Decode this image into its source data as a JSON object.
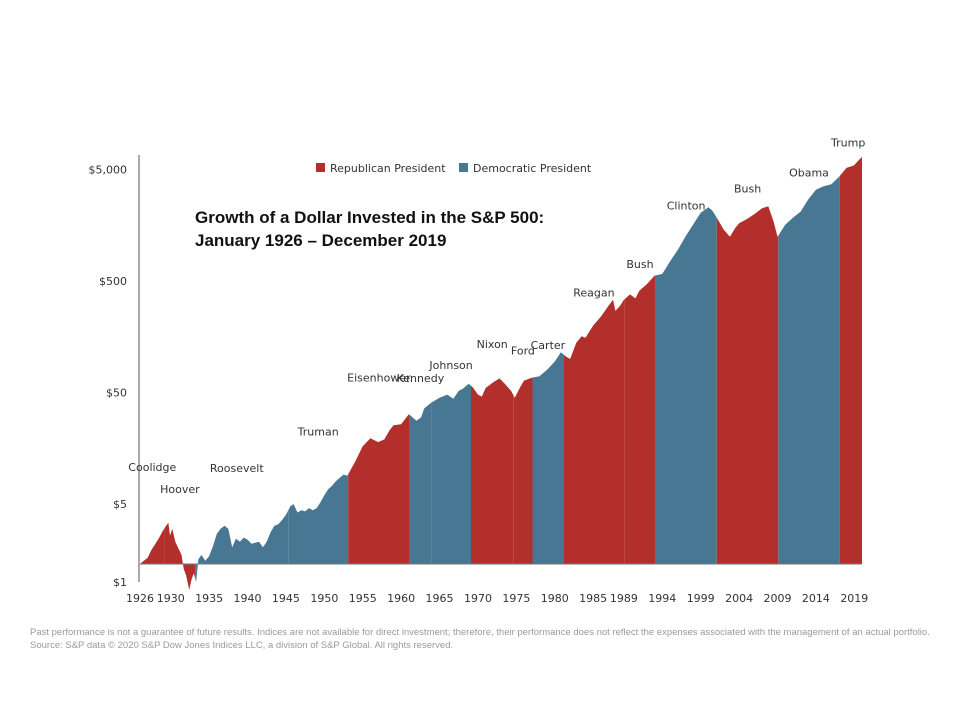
{
  "chart_data": {
    "type": "area",
    "title_line1": "Growth of a Dollar Invested in the S&P 500:",
    "title_line2": "January 1926 – December 2019",
    "yscale": "log",
    "ylim": [
      1,
      7500
    ],
    "xlim": [
      1926,
      2020
    ],
    "y_ticks": [
      {
        "value": 1,
        "label": "$1"
      },
      {
        "value": 5,
        "label": "$5"
      },
      {
        "value": 50,
        "label": "$50"
      },
      {
        "value": 500,
        "label": "$500"
      },
      {
        "value": 5000,
        "label": "$5,000"
      }
    ],
    "x_ticks": [
      {
        "value": 1926,
        "label": "1926"
      },
      {
        "value": 1930,
        "label": "1930"
      },
      {
        "value": 1935,
        "label": "1935"
      },
      {
        "value": 1940,
        "label": "1940"
      },
      {
        "value": 1945,
        "label": "1945"
      },
      {
        "value": 1950,
        "label": "1950"
      },
      {
        "value": 1955,
        "label": "1955"
      },
      {
        "value": 1960,
        "label": "1960"
      },
      {
        "value": 1965,
        "label": "1965"
      },
      {
        "value": 1970,
        "label": "1970"
      },
      {
        "value": 1975,
        "label": "1975"
      },
      {
        "value": 1980,
        "label": "1980"
      },
      {
        "value": 1985,
        "label": "1985"
      },
      {
        "value": 1989,
        "label": "1989"
      },
      {
        "value": 1994,
        "label": "1994"
      },
      {
        "value": 1999,
        "label": "1999"
      },
      {
        "value": 2004,
        "label": "2004"
      },
      {
        "value": 2009,
        "label": "2009"
      },
      {
        "value": 2014,
        "label": "2014"
      },
      {
        "value": 2019,
        "label": "2019"
      }
    ],
    "legend": [
      {
        "name": "Republican President",
        "color": "#b22f2c"
      },
      {
        "name": "Democratic President",
        "color": "#477792"
      }
    ],
    "baseline": 1.45,
    "series": [
      [
        1926.0,
        1.45
      ],
      [
        1926.5,
        1.55
      ],
      [
        1927.0,
        1.65
      ],
      [
        1927.5,
        1.95
      ],
      [
        1928.0,
        2.2
      ],
      [
        1928.5,
        2.5
      ],
      [
        1929.0,
        2.9
      ],
      [
        1929.4,
        3.2
      ],
      [
        1929.7,
        3.4
      ],
      [
        1929.9,
        2.6
      ],
      [
        1930.2,
        3.0
      ],
      [
        1930.6,
        2.3
      ],
      [
        1931.0,
        2.0
      ],
      [
        1931.4,
        1.75
      ],
      [
        1931.7,
        1.3
      ],
      [
        1932.0,
        1.15
      ],
      [
        1932.4,
        0.85
      ],
      [
        1932.7,
        1.05
      ],
      [
        1933.0,
        1.2
      ],
      [
        1933.3,
        1.0
      ],
      [
        1933.6,
        1.6
      ],
      [
        1934.0,
        1.75
      ],
      [
        1934.5,
        1.55
      ],
      [
        1935.0,
        1.7
      ],
      [
        1935.5,
        2.1
      ],
      [
        1936.0,
        2.7
      ],
      [
        1936.5,
        3.0
      ],
      [
        1937.0,
        3.2
      ],
      [
        1937.5,
        3.0
      ],
      [
        1938.0,
        2.05
      ],
      [
        1938.5,
        2.45
      ],
      [
        1939.0,
        2.3
      ],
      [
        1939.5,
        2.5
      ],
      [
        1940.0,
        2.4
      ],
      [
        1940.5,
        2.2
      ],
      [
        1941.0,
        2.25
      ],
      [
        1941.5,
        2.3
      ],
      [
        1942.0,
        2.05
      ],
      [
        1942.5,
        2.3
      ],
      [
        1943.0,
        2.8
      ],
      [
        1943.5,
        3.2
      ],
      [
        1944.0,
        3.3
      ],
      [
        1944.5,
        3.6
      ],
      [
        1945.0,
        4.0
      ],
      [
        1945.6,
        4.8
      ],
      [
        1946.0,
        5.0
      ],
      [
        1946.5,
        4.2
      ],
      [
        1947.0,
        4.4
      ],
      [
        1947.5,
        4.3
      ],
      [
        1948.0,
        4.6
      ],
      [
        1948.5,
        4.4
      ],
      [
        1949.0,
        4.6
      ],
      [
        1949.5,
        5.2
      ],
      [
        1950.0,
        6.0
      ],
      [
        1950.5,
        6.8
      ],
      [
        1951.0,
        7.3
      ],
      [
        1951.5,
        8.0
      ],
      [
        1952.0,
        8.6
      ],
      [
        1952.5,
        9.2
      ],
      [
        1953.0,
        9.0
      ],
      [
        1954.0,
        12.0
      ],
      [
        1955.0,
        16.5
      ],
      [
        1956.0,
        19.5
      ],
      [
        1957.0,
        18.0
      ],
      [
        1957.8,
        19.0
      ],
      [
        1958.5,
        23.0
      ],
      [
        1959.0,
        25.5
      ],
      [
        1960.0,
        26.0
      ],
      [
        1961.0,
        32.0
      ],
      [
        1962.0,
        28.0
      ],
      [
        1962.6,
        30.0
      ],
      [
        1963.0,
        36.0
      ],
      [
        1964.0,
        41.0
      ],
      [
        1965.0,
        45.0
      ],
      [
        1966.0,
        48.0
      ],
      [
        1966.8,
        44.0
      ],
      [
        1967.5,
        52.0
      ],
      [
        1968.0,
        54.0
      ],
      [
        1968.8,
        60.0
      ],
      [
        1969.3,
        56.0
      ],
      [
        1970.0,
        48.0
      ],
      [
        1970.5,
        46.0
      ],
      [
        1971.0,
        55.0
      ],
      [
        1972.0,
        62.0
      ],
      [
        1972.8,
        67.0
      ],
      [
        1973.5,
        60.0
      ],
      [
        1974.3,
        52.0
      ],
      [
        1974.8,
        45.0
      ],
      [
        1975.5,
        56.0
      ],
      [
        1976.0,
        64.0
      ],
      [
        1977.0,
        68.0
      ],
      [
        1978.0,
        70.0
      ],
      [
        1979.0,
        80.0
      ],
      [
        1980.0,
        95.0
      ],
      [
        1980.8,
        115.0
      ],
      [
        1981.5,
        105.0
      ],
      [
        1982.0,
        100.0
      ],
      [
        1982.8,
        140.0
      ],
      [
        1983.5,
        160.0
      ],
      [
        1984.0,
        155.0
      ],
      [
        1985.0,
        200.0
      ],
      [
        1986.0,
        240.0
      ],
      [
        1987.0,
        300.0
      ],
      [
        1987.6,
        340.0
      ],
      [
        1987.9,
        270.0
      ],
      [
        1988.5,
        300.0
      ],
      [
        1989.0,
        340.0
      ],
      [
        1989.8,
        380.0
      ],
      [
        1990.5,
        350.0
      ],
      [
        1991.0,
        410.0
      ],
      [
        1992.0,
        470.0
      ],
      [
        1993.0,
        560.0
      ],
      [
        1994.0,
        580.0
      ],
      [
        1995.0,
        750.0
      ],
      [
        1996.0,
        950.0
      ],
      [
        1997.0,
        1250.0
      ],
      [
        1998.0,
        1600.0
      ],
      [
        1999.0,
        2050.0
      ],
      [
        2000.0,
        2300.0
      ],
      [
        2000.5,
        2150.0
      ],
      [
        2001.0,
        1900.0
      ],
      [
        2002.0,
        1450.0
      ],
      [
        2002.8,
        1250.0
      ],
      [
        2003.5,
        1500.0
      ],
      [
        2004.0,
        1650.0
      ],
      [
        2005.0,
        1800.0
      ],
      [
        2006.0,
        2000.0
      ],
      [
        2007.0,
        2250.0
      ],
      [
        2007.8,
        2350.0
      ],
      [
        2008.5,
        1700.0
      ],
      [
        2009.0,
        1250.0
      ],
      [
        2010.0,
        1600.0
      ],
      [
        2011.0,
        1850.0
      ],
      [
        2012.0,
        2100.0
      ],
      [
        2013.0,
        2700.0
      ],
      [
        2014.0,
        3300.0
      ],
      [
        2015.0,
        3550.0
      ],
      [
        2016.0,
        3700.0
      ],
      [
        2017.0,
        4300.0
      ],
      [
        2018.0,
        5200.0
      ],
      [
        2018.8,
        5400.0
      ],
      [
        2019.0,
        5500.0
      ],
      [
        2019.5,
        6000.0
      ],
      [
        2020.0,
        6500.0
      ]
    ],
    "presidents": [
      {
        "name": "Coolidge",
        "party": "R",
        "start": 1926.0,
        "end": 1929.2
      },
      {
        "name": "Hoover",
        "party": "R",
        "start": 1929.2,
        "end": 1933.2
      },
      {
        "name": "Roosevelt",
        "party": "D",
        "start": 1933.2,
        "end": 1945.3
      },
      {
        "name": "Truman",
        "party": "D",
        "start": 1945.3,
        "end": 1953.1
      },
      {
        "name": "Eisenhower",
        "party": "R",
        "start": 1953.1,
        "end": 1961.1
      },
      {
        "name": "Kennedy",
        "party": "D",
        "start": 1961.1,
        "end": 1963.9
      },
      {
        "name": "Johnson",
        "party": "D",
        "start": 1963.9,
        "end": 1969.1
      },
      {
        "name": "Nixon",
        "party": "R",
        "start": 1969.1,
        "end": 1974.6
      },
      {
        "name": "Ford",
        "party": "R",
        "start": 1974.6,
        "end": 1977.1
      },
      {
        "name": "Carter",
        "party": "D",
        "start": 1977.1,
        "end": 1981.1
      },
      {
        "name": "Reagan",
        "party": "R",
        "start": 1981.1,
        "end": 1989.1
      },
      {
        "name": "Bush",
        "party": "R",
        "start": 1989.1,
        "end": 1993.1
      },
      {
        "name": "Clinton",
        "party": "D",
        "start": 1993.1,
        "end": 2001.1
      },
      {
        "name": "Bush",
        "party": "R",
        "start": 2001.1,
        "end": 2009.1
      },
      {
        "name": "Obama",
        "party": "D",
        "start": 2009.1,
        "end": 2017.1
      },
      {
        "name": "Trump",
        "party": "R",
        "start": 2017.1,
        "end": 2020.0
      }
    ],
    "party_colors": {
      "R": "#b22f2c",
      "D": "#477792"
    }
  },
  "footnote": "Past performance is not a guarantee of future results. Indices are not available for direct investment; therefore, their performance does not reflect the expenses associated with the management of an actual portfolio. Source: S&P data © 2020 S&P Dow Jones Indices LLC, a division of S&P Global. All rights reserved."
}
